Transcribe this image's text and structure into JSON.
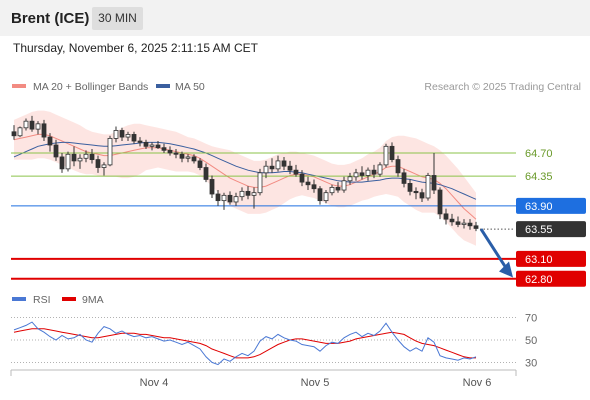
{
  "header": {
    "instrument": "Brent (ICE)",
    "timeframe": "30 MIN",
    "timestamp": "Thursday, November 6, 2025 2:11:15 AM CET"
  },
  "chart_data": [
    {
      "type": "candlestick",
      "title": "Brent (ICE)",
      "legend": [
        {
          "name": "MA 20 + Bollinger Bands",
          "color": "#f28b82"
        },
        {
          "name": "MA 50",
          "color": "#3a5f9f"
        }
      ],
      "credit": "Research © 2025 Trading Central",
      "ylim": [
        62.6,
        65.5
      ],
      "x_ticks": [
        "Nov 4",
        "Nov 5",
        "Nov 6"
      ],
      "levels": [
        {
          "value": 64.7,
          "label": "64.70",
          "kind": "resistance",
          "color": "#8bc34a"
        },
        {
          "value": 64.35,
          "label": "64.35",
          "kind": "resistance",
          "color": "#8bc34a"
        },
        {
          "value": 63.9,
          "label": "63.90",
          "kind": "pivot",
          "color": "#1e6fe0"
        },
        {
          "value": 63.55,
          "label": "63.55",
          "kind": "last",
          "color": "#333333"
        },
        {
          "value": 63.1,
          "label": "63.10",
          "kind": "support",
          "color": "#e00000"
        },
        {
          "value": 62.8,
          "label": "62.80",
          "kind": "support",
          "color": "#e00000"
        }
      ],
      "arrow": {
        "from": 63.55,
        "to": 62.85,
        "direction": "down",
        "color": "#2a5ea8"
      },
      "candles": [
        [
          65.02,
          65.12,
          64.9,
          64.96
        ],
        [
          64.96,
          65.1,
          64.94,
          65.08
        ],
        [
          65.08,
          65.22,
          65.04,
          65.18
        ],
        [
          65.18,
          65.26,
          65.02,
          65.06
        ],
        [
          65.06,
          65.18,
          64.98,
          65.14
        ],
        [
          65.14,
          65.2,
          64.88,
          64.94
        ],
        [
          64.94,
          65.0,
          64.72,
          64.82
        ],
        [
          64.82,
          64.9,
          64.58,
          64.64
        ],
        [
          64.64,
          64.7,
          64.4,
          64.46
        ],
        [
          64.46,
          64.72,
          64.42,
          64.68
        ],
        [
          64.68,
          64.8,
          64.5,
          64.58
        ],
        [
          64.58,
          64.68,
          64.46,
          64.62
        ],
        [
          64.62,
          64.74,
          64.56,
          64.68
        ],
        [
          64.68,
          64.76,
          64.54,
          64.6
        ],
        [
          64.6,
          64.66,
          64.4,
          64.48
        ],
        [
          64.48,
          64.56,
          64.36,
          64.52
        ],
        [
          64.52,
          64.96,
          64.5,
          64.92
        ],
        [
          64.92,
          65.1,
          64.86,
          65.04
        ],
        [
          65.04,
          65.08,
          64.88,
          64.94
        ],
        [
          64.94,
          65.02,
          64.88,
          64.98
        ],
        [
          64.98,
          65.02,
          64.84,
          64.88
        ],
        [
          64.88,
          64.94,
          64.8,
          64.86
        ],
        [
          64.86,
          64.9,
          64.76,
          64.8
        ],
        [
          64.8,
          64.86,
          64.74,
          64.82
        ],
        [
          64.82,
          64.88,
          64.76,
          64.78
        ],
        [
          64.78,
          64.84,
          64.7,
          64.74
        ],
        [
          64.74,
          64.8,
          64.66,
          64.7
        ],
        [
          64.7,
          64.76,
          64.62,
          64.68
        ],
        [
          64.68,
          64.72,
          64.56,
          64.62
        ],
        [
          64.62,
          64.68,
          64.56,
          64.64
        ],
        [
          64.64,
          64.68,
          64.54,
          64.58
        ],
        [
          64.58,
          64.62,
          64.44,
          64.48
        ],
        [
          64.48,
          64.54,
          64.26,
          64.3
        ],
        [
          64.3,
          64.36,
          64.02,
          64.08
        ],
        [
          64.08,
          64.14,
          63.9,
          63.98
        ],
        [
          63.98,
          64.1,
          63.84,
          64.06
        ],
        [
          64.06,
          64.12,
          63.92,
          63.96
        ],
        [
          63.96,
          64.1,
          63.9,
          64.04
        ],
        [
          64.04,
          64.18,
          63.98,
          64.12
        ],
        [
          64.12,
          64.2,
          64.0,
          64.06
        ],
        [
          64.06,
          64.18,
          63.86,
          64.1
        ],
        [
          64.1,
          64.46,
          64.06,
          64.4
        ],
        [
          64.4,
          64.58,
          64.32,
          64.5
        ],
        [
          64.5,
          64.62,
          64.4,
          64.46
        ],
        [
          64.46,
          64.66,
          64.42,
          64.58
        ],
        [
          64.58,
          64.64,
          64.44,
          64.5
        ],
        [
          64.5,
          64.58,
          64.38,
          64.44
        ],
        [
          64.44,
          64.52,
          64.34,
          64.38
        ],
        [
          64.38,
          64.44,
          64.2,
          64.26
        ],
        [
          64.26,
          64.34,
          64.14,
          64.22
        ],
        [
          64.22,
          64.3,
          64.1,
          64.16
        ],
        [
          64.16,
          64.2,
          63.92,
          63.98
        ],
        [
          63.98,
          64.14,
          63.94,
          64.1
        ],
        [
          64.1,
          64.22,
          64.06,
          64.18
        ],
        [
          64.18,
          64.26,
          64.1,
          64.14
        ],
        [
          64.14,
          64.34,
          64.1,
          64.28
        ],
        [
          64.28,
          64.4,
          64.22,
          64.34
        ],
        [
          64.34,
          64.46,
          64.28,
          64.4
        ],
        [
          64.4,
          64.5,
          64.3,
          64.36
        ],
        [
          64.36,
          64.48,
          64.28,
          64.44
        ],
        [
          64.44,
          64.52,
          64.32,
          64.38
        ],
        [
          64.38,
          64.56,
          64.34,
          64.52
        ],
        [
          64.52,
          64.84,
          64.48,
          64.8
        ],
        [
          64.8,
          64.86,
          64.56,
          64.6
        ],
        [
          64.6,
          64.66,
          64.34,
          64.4
        ],
        [
          64.4,
          64.46,
          64.18,
          64.24
        ],
        [
          64.24,
          64.3,
          64.06,
          64.12
        ],
        [
          64.12,
          64.18,
          64.0,
          64.1
        ],
        [
          64.1,
          64.16,
          63.96,
          64.02
        ],
        [
          64.02,
          64.4,
          63.98,
          64.36
        ],
        [
          64.36,
          64.7,
          64.08,
          64.14
        ],
        [
          64.14,
          64.18,
          63.7,
          63.78
        ],
        [
          63.78,
          63.86,
          63.62,
          63.7
        ],
        [
          63.7,
          63.78,
          63.6,
          63.66
        ],
        [
          63.66,
          63.74,
          63.58,
          63.62
        ],
        [
          63.62,
          63.7,
          63.56,
          63.64
        ],
        [
          63.64,
          63.7,
          63.54,
          63.6
        ],
        [
          63.6,
          63.66,
          63.52,
          63.56
        ]
      ],
      "ma20": [
        64.9,
        64.92,
        64.94,
        64.96,
        64.98,
        64.98,
        64.96,
        64.92,
        64.88,
        64.84,
        64.8,
        64.76,
        64.72,
        64.7,
        64.68,
        64.66,
        64.66,
        64.68,
        64.7,
        64.72,
        64.74,
        64.76,
        64.78,
        64.78,
        64.78,
        64.76,
        64.74,
        64.72,
        64.7,
        64.68,
        64.66,
        64.62,
        64.56,
        64.5,
        64.44,
        64.38,
        64.32,
        64.28,
        64.24,
        64.2,
        64.18,
        64.18,
        64.2,
        64.24,
        64.28,
        64.32,
        64.36,
        64.38,
        64.38,
        64.36,
        64.34,
        64.3,
        64.26,
        64.22,
        64.2,
        64.2,
        64.22,
        64.26,
        64.3,
        64.34,
        64.38,
        64.42,
        64.48,
        64.5,
        64.5,
        64.46,
        64.42,
        64.38,
        64.34,
        64.32,
        64.3,
        64.24,
        64.16,
        64.06,
        63.96,
        63.86,
        63.78,
        63.7
      ],
      "bb_upper": [
        65.2,
        65.24,
        65.28,
        65.32,
        65.34,
        65.34,
        65.32,
        65.28,
        65.24,
        65.2,
        65.16,
        65.12,
        65.06,
        65.02,
        65.0,
        64.98,
        64.98,
        65.02,
        65.08,
        65.12,
        65.14,
        65.14,
        65.12,
        65.1,
        65.08,
        65.06,
        65.04,
        65.02,
        64.98,
        64.94,
        64.92,
        64.88,
        64.84,
        64.8,
        64.78,
        64.76,
        64.74,
        64.7,
        64.66,
        64.62,
        64.58,
        64.58,
        64.6,
        64.64,
        64.68,
        64.7,
        64.72,
        64.72,
        64.7,
        64.68,
        64.66,
        64.62,
        64.58,
        64.54,
        64.52,
        64.52,
        64.54,
        64.58,
        64.62,
        64.68,
        64.72,
        64.78,
        64.88,
        64.94,
        64.96,
        64.96,
        64.94,
        64.92,
        64.88,
        64.84,
        64.8,
        64.74,
        64.66,
        64.56,
        64.46,
        64.34,
        64.22,
        64.1
      ],
      "bb_lower": [
        64.6,
        64.6,
        64.6,
        64.6,
        64.62,
        64.62,
        64.6,
        64.56,
        64.52,
        64.48,
        64.44,
        64.4,
        64.38,
        64.38,
        64.36,
        64.34,
        64.34,
        64.34,
        64.32,
        64.32,
        64.34,
        64.38,
        64.44,
        64.46,
        64.48,
        64.46,
        64.44,
        64.42,
        64.42,
        64.42,
        64.4,
        64.36,
        64.28,
        64.2,
        64.1,
        64.0,
        63.9,
        63.86,
        63.82,
        63.78,
        63.78,
        63.78,
        63.8,
        63.84,
        63.88,
        63.94,
        64.0,
        64.04,
        64.06,
        64.04,
        64.02,
        63.98,
        63.94,
        63.9,
        63.88,
        63.88,
        63.9,
        63.94,
        63.98,
        64.0,
        64.04,
        64.06,
        64.08,
        64.06,
        64.04,
        63.96,
        63.9,
        63.84,
        63.8,
        63.8,
        63.8,
        63.74,
        63.66,
        63.56,
        63.46,
        63.38,
        63.34,
        63.3
      ],
      "ma50": [
        64.64,
        64.68,
        64.72,
        64.76,
        64.8,
        64.82,
        64.84,
        64.85,
        64.86,
        64.86,
        64.85,
        64.84,
        64.83,
        64.82,
        64.81,
        64.8,
        64.8,
        64.81,
        64.82,
        64.83,
        64.84,
        64.85,
        64.86,
        64.86,
        64.86,
        64.85,
        64.84,
        64.82,
        64.8,
        64.78,
        64.76,
        64.73,
        64.7,
        64.66,
        64.62,
        64.58,
        64.54,
        64.5,
        64.47,
        64.44,
        64.42,
        64.4,
        64.4,
        64.4,
        64.41,
        64.42,
        64.42,
        64.41,
        64.4,
        64.38,
        64.36,
        64.34,
        64.32,
        64.3,
        64.28,
        64.27,
        64.26,
        64.26,
        64.26,
        64.27,
        64.28,
        64.29,
        64.31,
        64.32,
        64.32,
        64.31,
        64.3,
        64.28,
        64.26,
        64.25,
        64.24,
        64.22,
        64.19,
        64.16,
        64.12,
        64.08,
        64.04,
        64.0
      ]
    },
    {
      "type": "line",
      "title": "RSI",
      "legend": [
        {
          "name": "RSI",
          "color": "#4a78d4"
        },
        {
          "name": "9MA",
          "color": "#e00000"
        }
      ],
      "ylim": [
        25,
        75
      ],
      "y_ticks": [
        70,
        50,
        30
      ],
      "rsi": [
        59,
        61,
        63,
        66,
        60,
        57,
        53,
        50,
        54,
        51,
        52,
        55,
        50,
        48,
        56,
        62,
        60,
        56,
        58,
        55,
        53,
        54,
        52,
        53,
        51,
        49,
        50,
        48,
        46,
        48,
        45,
        42,
        35,
        30,
        28,
        33,
        31,
        35,
        38,
        36,
        40,
        49,
        53,
        51,
        55,
        52,
        50,
        49,
        46,
        45,
        44,
        40,
        45,
        48,
        47,
        52,
        55,
        57,
        53,
        56,
        54,
        58,
        65,
        57,
        50,
        44,
        40,
        43,
        40,
        52,
        48,
        36,
        34,
        33,
        32,
        34,
        33,
        35
      ],
      "ma9": [
        57,
        58,
        59,
        60,
        60,
        60,
        59,
        58,
        57,
        56,
        55,
        54,
        53,
        52,
        52,
        53,
        54,
        55,
        56,
        56,
        56,
        55,
        55,
        54,
        53,
        52,
        52,
        51,
        50,
        49,
        48,
        47,
        45,
        42,
        40,
        38,
        36,
        34,
        34,
        34,
        35,
        37,
        40,
        43,
        46,
        48,
        50,
        51,
        51,
        50,
        49,
        48,
        47,
        47,
        47,
        48,
        49,
        51,
        52,
        53,
        54,
        55,
        56,
        57,
        56,
        55,
        52,
        49,
        47,
        46,
        45,
        43,
        41,
        39,
        37,
        35,
        34,
        34
      ]
    }
  ]
}
